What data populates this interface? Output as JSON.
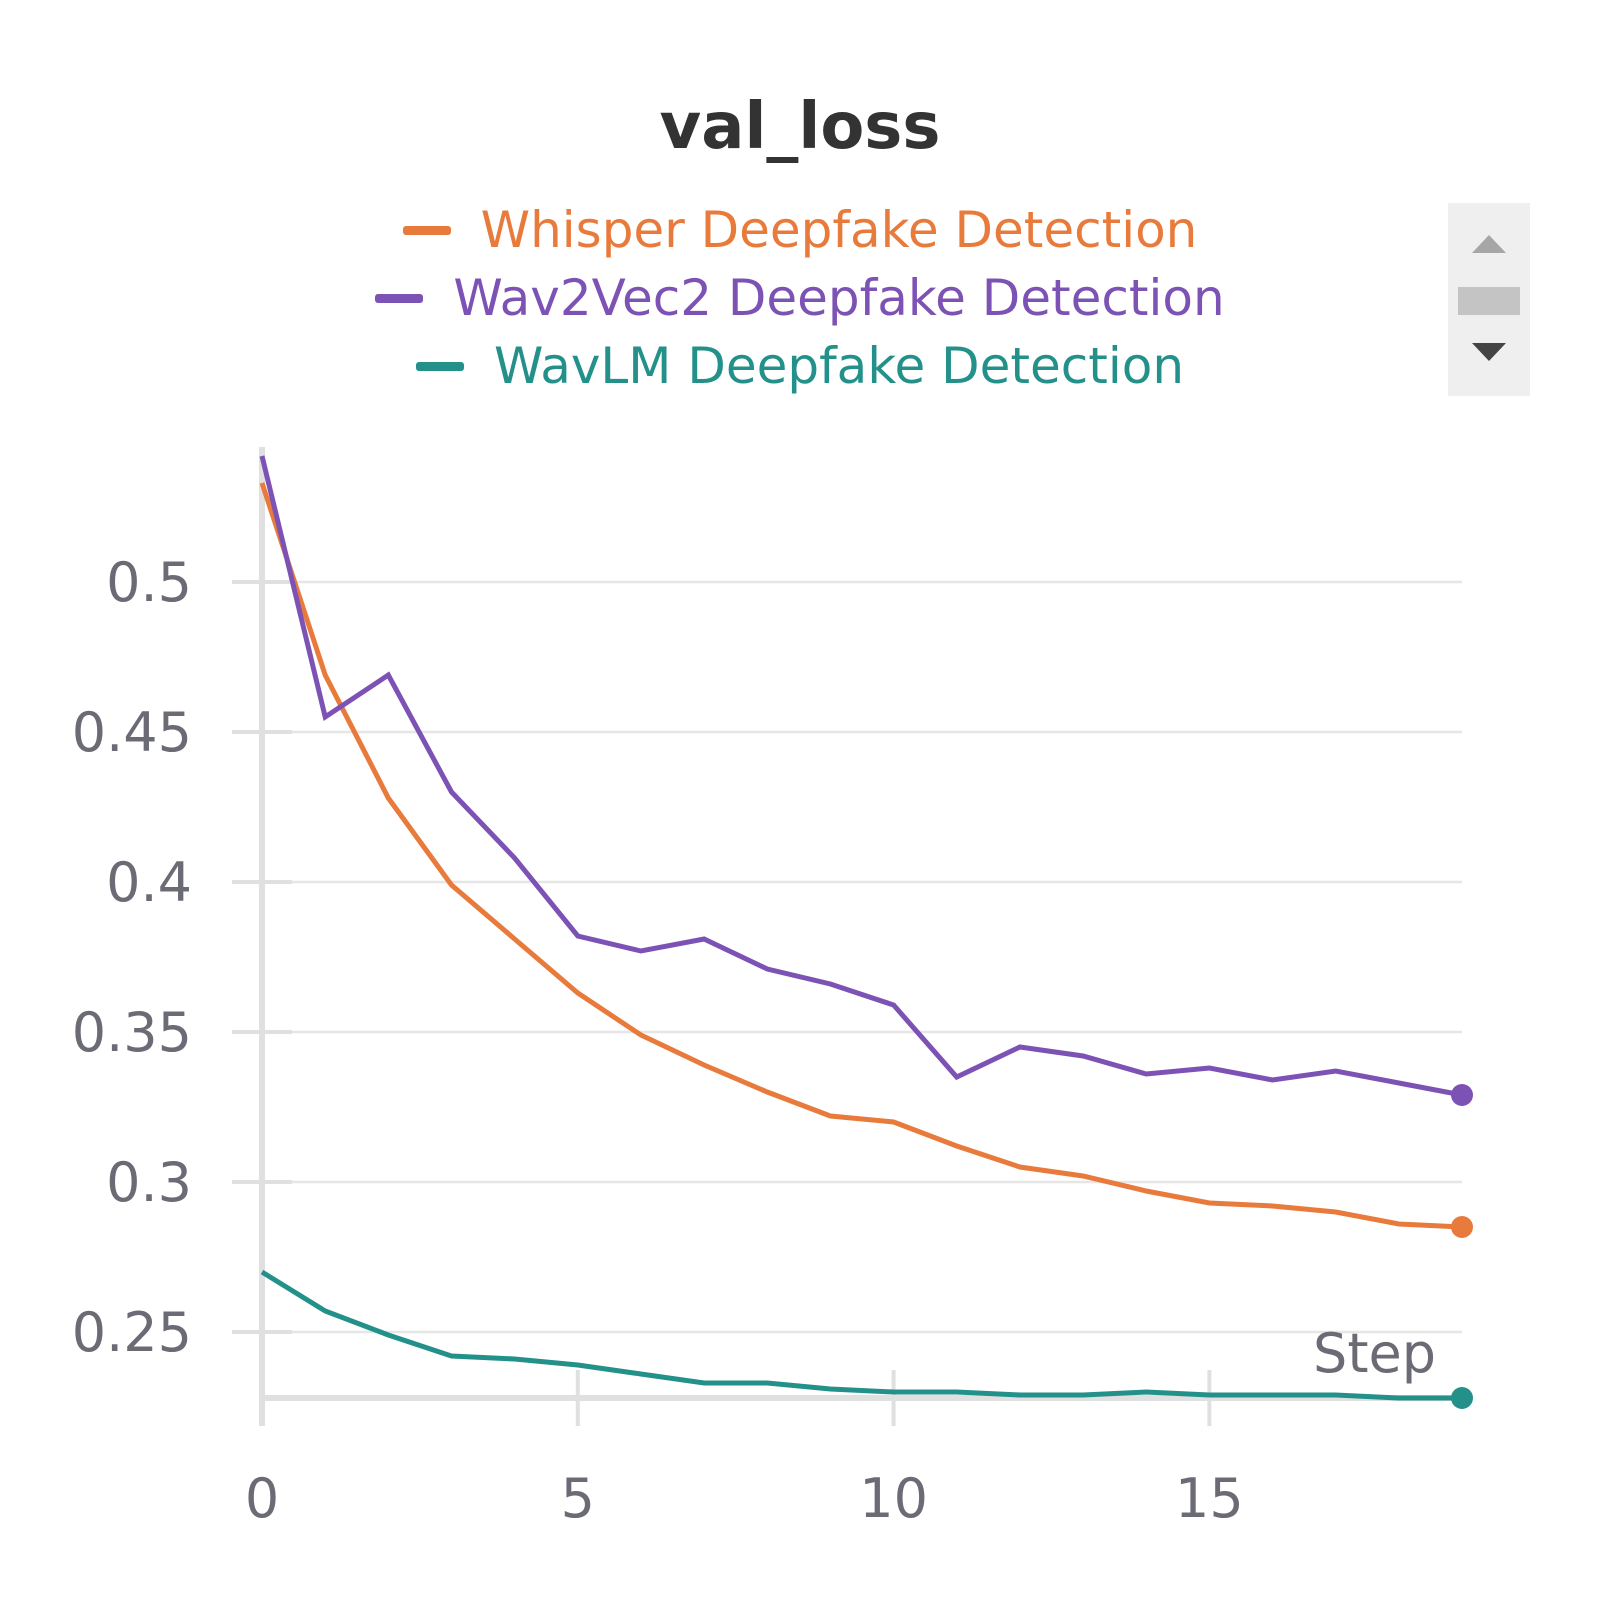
{
  "chart_data": {
    "type": "line",
    "title": "val_loss",
    "xlabel": "Step",
    "ylabel": "",
    "xlim": [
      0,
      19
    ],
    "ylim": [
      0.228,
      0.545
    ],
    "x_ticks": [
      0,
      5,
      10,
      15
    ],
    "x_tick_labels": [
      "0",
      "5",
      "10",
      "15"
    ],
    "y_ticks": [
      0.25,
      0.3,
      0.35,
      0.4,
      0.45,
      0.5
    ],
    "y_tick_labels": [
      "0.25",
      "0.3",
      "0.35",
      "0.4",
      "0.45",
      "0.5"
    ],
    "grid": true,
    "legend_position": "top-center",
    "x": [
      0,
      1,
      2,
      3,
      4,
      5,
      6,
      7,
      8,
      9,
      10,
      11,
      12,
      13,
      14,
      15,
      16,
      17,
      18,
      19
    ],
    "series": [
      {
        "name": "Whisper Deepfake Detection",
        "color": "#e87b3b",
        "values": [
          0.533,
          0.469,
          0.428,
          0.399,
          0.381,
          0.363,
          0.349,
          0.339,
          0.33,
          0.322,
          0.32,
          0.312,
          0.305,
          0.302,
          0.297,
          0.293,
          0.292,
          0.29,
          0.286,
          0.285
        ]
      },
      {
        "name": "Wav2Vec2 Deepfake Detection",
        "color": "#7d52b5",
        "values": [
          0.542,
          0.455,
          0.469,
          0.43,
          0.408,
          0.382,
          0.377,
          0.381,
          0.371,
          0.366,
          0.359,
          0.335,
          0.345,
          0.342,
          0.336,
          0.338,
          0.334,
          0.337,
          0.333,
          0.329
        ]
      },
      {
        "name": "WavLM Deepfake Detection",
        "color": "#23918a",
        "values": [
          0.27,
          0.257,
          0.249,
          0.242,
          0.241,
          0.239,
          0.236,
          0.233,
          0.233,
          0.231,
          0.23,
          0.23,
          0.229,
          0.229,
          0.23,
          0.229,
          0.229,
          0.229,
          0.228,
          0.228
        ]
      }
    ]
  }
}
